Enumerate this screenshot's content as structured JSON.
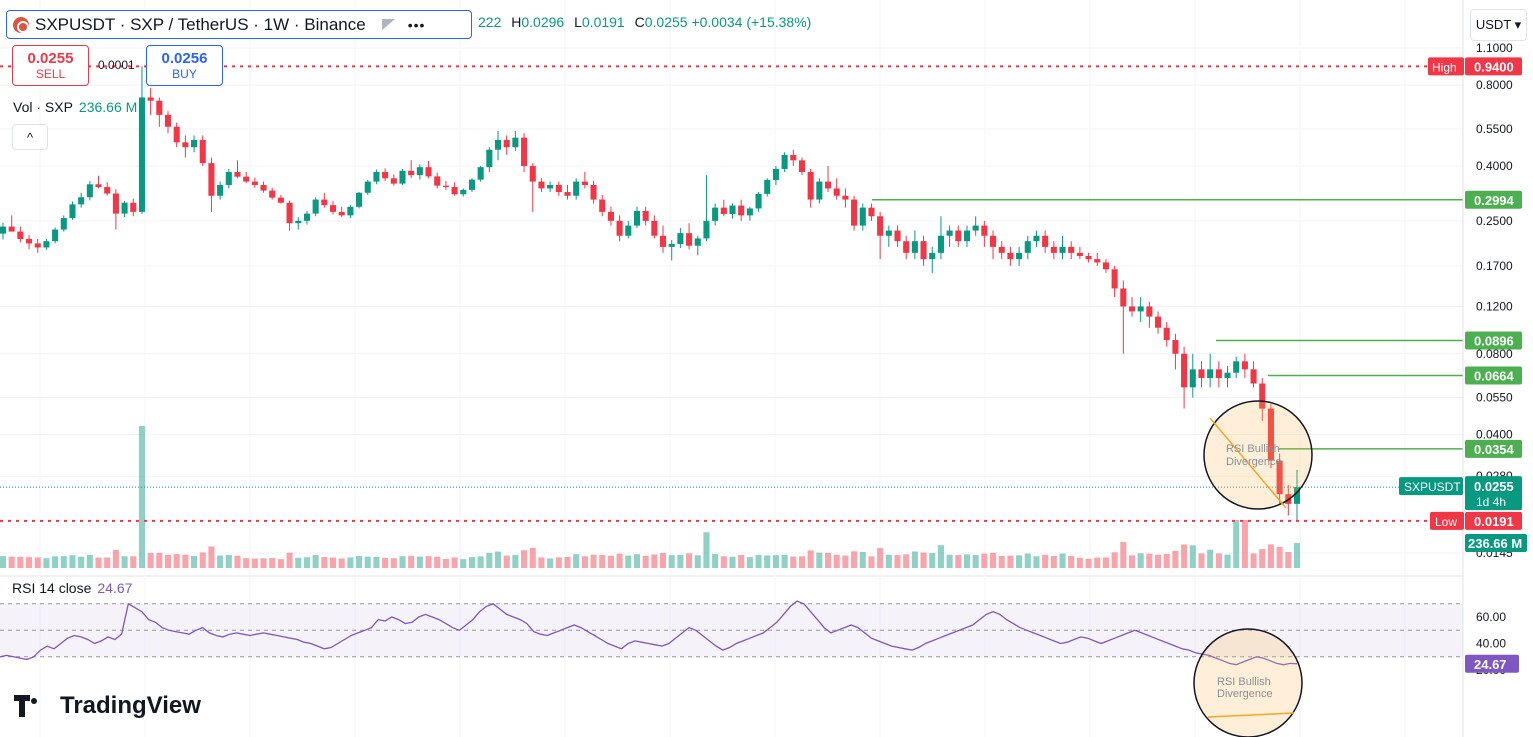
{
  "header": {
    "title": "SXPUSDT · SXP / TetherUS · 1W · Binance",
    "more": "•••",
    "ohlc": {
      "o_label": "222",
      "h_label": "H",
      "h": "0.0296",
      "l_label": "L",
      "l": "0.0191",
      "c_label": "C",
      "c": "0.0255",
      "change": "+0.0034 (+15.38%)"
    }
  },
  "trade": {
    "sell_price": "0.0255",
    "sell_label": "SELL",
    "spread": "0.0001",
    "buy_price": "0.0256",
    "buy_label": "BUY"
  },
  "volume_legend": {
    "label": "Vol · SXP",
    "value": "236.66 M"
  },
  "currency": "USDT ▾",
  "collapse_icon": "^",
  "rsi_legend": {
    "label": "RSI 14 close",
    "value": "24.67"
  },
  "brand": "TradingView",
  "colors": {
    "up": "#089981",
    "down": "#f23645",
    "rsi": "#7e57c2",
    "level": "#4caf50",
    "accent": "#2962ff"
  },
  "chart_data": {
    "type": "candlestick",
    "timeframe": "1W",
    "price_axis": {
      "scale": "log",
      "ticks": [
        "1.1000",
        "0.8000",
        "0.5500",
        "0.4000",
        "0.2500",
        "0.1700",
        "0.1200",
        "0.0800",
        "0.0550",
        "0.0400",
        "0.0280",
        "0.0145"
      ]
    },
    "high_marker": {
      "label": "High",
      "value": "0.9400"
    },
    "low_marker": {
      "label": "Low",
      "value": "0.0191"
    },
    "current": {
      "symbol": "SXPUSDT",
      "value": "0.0255",
      "countdown": "1d 4h"
    },
    "volume_marker": "236.66 M",
    "levels": [
      {
        "value": "0.2994"
      },
      {
        "value": "0.0896"
      },
      {
        "value": "0.0664"
      },
      {
        "value": "0.0354"
      }
    ],
    "annotations": [
      "RSI Bullish Divergence",
      "RSI Bullish Divergence"
    ],
    "rsi": {
      "period": 14,
      "axis_ticks": [
        "60.00",
        "40.00",
        "20.00"
      ],
      "current": "24.67",
      "values": [
        30,
        31,
        30,
        29,
        28,
        30,
        35,
        38,
        36,
        40,
        44,
        46,
        45,
        43,
        40,
        42,
        45,
        43,
        47,
        70,
        67,
        64,
        58,
        56,
        52,
        50,
        49,
        48,
        47,
        50,
        52,
        48,
        46,
        45,
        47,
        48,
        47,
        46,
        47,
        48,
        47,
        46,
        45,
        44,
        43,
        41,
        40,
        38,
        36,
        37,
        40,
        43,
        46,
        48,
        50,
        52,
        58,
        57,
        60,
        58,
        55,
        56,
        60,
        62,
        60,
        58,
        55,
        52,
        50,
        54,
        58,
        64,
        68,
        70,
        66,
        62,
        60,
        58,
        55,
        49,
        47,
        46,
        48,
        50,
        52,
        54,
        52,
        49,
        46,
        43,
        40,
        38,
        36,
        40,
        42,
        41,
        40,
        39,
        38,
        40,
        44,
        48,
        52,
        50,
        46,
        42,
        38,
        35,
        37,
        40,
        42,
        44,
        46,
        48,
        52,
        56,
        62,
        68,
        72,
        70,
        64,
        58,
        52,
        48,
        50,
        52,
        54,
        52,
        48,
        44,
        42,
        40,
        38,
        37,
        36,
        35,
        37,
        40,
        42,
        44,
        46,
        48,
        50,
        52,
        54,
        58,
        62,
        64,
        62,
        58,
        55,
        52,
        50,
        48,
        46,
        44,
        42,
        40,
        41,
        43,
        45,
        44,
        42,
        40,
        42,
        44,
        46,
        48,
        50,
        48,
        46,
        44,
        42,
        40,
        38,
        36,
        35,
        33,
        32,
        31,
        29,
        27,
        25,
        24,
        26,
        28,
        30,
        29,
        27,
        25,
        24,
        25,
        24.67
      ]
    },
    "candles": [
      [
        0.224,
        0.246,
        0.213,
        0.238
      ],
      [
        0.238,
        0.262,
        0.23,
        0.228
      ],
      [
        0.228,
        0.238,
        0.208,
        0.214
      ],
      [
        0.214,
        0.222,
        0.196,
        0.206
      ],
      [
        0.206,
        0.214,
        0.19,
        0.199
      ],
      [
        0.199,
        0.214,
        0.195,
        0.21
      ],
      [
        0.21,
        0.236,
        0.206,
        0.232
      ],
      [
        0.232,
        0.262,
        0.228,
        0.256
      ],
      [
        0.256,
        0.295,
        0.252,
        0.288
      ],
      [
        0.288,
        0.318,
        0.28,
        0.306
      ],
      [
        0.306,
        0.352,
        0.298,
        0.342
      ],
      [
        0.342,
        0.368,
        0.33,
        0.334
      ],
      [
        0.334,
        0.348,
        0.31,
        0.316
      ],
      [
        0.316,
        0.328,
        0.232,
        0.266
      ],
      [
        0.266,
        0.296,
        0.258,
        0.292
      ],
      [
        0.292,
        0.302,
        0.26,
        0.27
      ],
      [
        0.27,
        0.94,
        0.265,
        0.72
      ],
      [
        0.72,
        0.78,
        0.62,
        0.7
      ],
      [
        0.7,
        0.72,
        0.56,
        0.62
      ],
      [
        0.62,
        0.64,
        0.53,
        0.56
      ],
      [
        0.56,
        0.58,
        0.47,
        0.49
      ],
      [
        0.49,
        0.52,
        0.43,
        0.47
      ],
      [
        0.47,
        0.52,
        0.45,
        0.5
      ],
      [
        0.5,
        0.52,
        0.4,
        0.41
      ],
      [
        0.41,
        0.43,
        0.27,
        0.31
      ],
      [
        0.31,
        0.35,
        0.3,
        0.34
      ],
      [
        0.34,
        0.39,
        0.33,
        0.38
      ],
      [
        0.38,
        0.42,
        0.36,
        0.365
      ],
      [
        0.365,
        0.38,
        0.345,
        0.35
      ],
      [
        0.35,
        0.362,
        0.332,
        0.34
      ],
      [
        0.34,
        0.35,
        0.318,
        0.324
      ],
      [
        0.324,
        0.332,
        0.3,
        0.305
      ],
      [
        0.305,
        0.312,
        0.29,
        0.292
      ],
      [
        0.292,
        0.298,
        0.23,
        0.245
      ],
      [
        0.245,
        0.258,
        0.232,
        0.25
      ],
      [
        0.25,
        0.272,
        0.242,
        0.266
      ],
      [
        0.266,
        0.306,
        0.26,
        0.3
      ],
      [
        0.3,
        0.318,
        0.28,
        0.286
      ],
      [
        0.286,
        0.296,
        0.264,
        0.27
      ],
      [
        0.27,
        0.282,
        0.258,
        0.262
      ],
      [
        0.262,
        0.286,
        0.256,
        0.282
      ],
      [
        0.282,
        0.32,
        0.278,
        0.318
      ],
      [
        0.318,
        0.355,
        0.312,
        0.35
      ],
      [
        0.35,
        0.388,
        0.342,
        0.38
      ],
      [
        0.38,
        0.392,
        0.352,
        0.36
      ],
      [
        0.36,
        0.372,
        0.338,
        0.344
      ],
      [
        0.344,
        0.39,
        0.34,
        0.384
      ],
      [
        0.384,
        0.42,
        0.36,
        0.37
      ],
      [
        0.37,
        0.406,
        0.356,
        0.396
      ],
      [
        0.396,
        0.418,
        0.36,
        0.366
      ],
      [
        0.366,
        0.378,
        0.33,
        0.338
      ],
      [
        0.338,
        0.352,
        0.326,
        0.334
      ],
      [
        0.334,
        0.348,
        0.31,
        0.314
      ],
      [
        0.314,
        0.33,
        0.308,
        0.326
      ],
      [
        0.326,
        0.36,
        0.32,
        0.356
      ],
      [
        0.356,
        0.4,
        0.35,
        0.396
      ],
      [
        0.396,
        0.47,
        0.38,
        0.46
      ],
      [
        0.46,
        0.54,
        0.42,
        0.5
      ],
      [
        0.5,
        0.52,
        0.44,
        0.47
      ],
      [
        0.47,
        0.54,
        0.456,
        0.51
      ],
      [
        0.51,
        0.53,
        0.38,
        0.4
      ],
      [
        0.4,
        0.41,
        0.27,
        0.35
      ],
      [
        0.35,
        0.36,
        0.32,
        0.33
      ],
      [
        0.33,
        0.35,
        0.32,
        0.34
      ],
      [
        0.34,
        0.35,
        0.31,
        0.32
      ],
      [
        0.32,
        0.34,
        0.3,
        0.31
      ],
      [
        0.31,
        0.36,
        0.3,
        0.35
      ],
      [
        0.35,
        0.38,
        0.33,
        0.34
      ],
      [
        0.34,
        0.352,
        0.29,
        0.3
      ],
      [
        0.3,
        0.312,
        0.26,
        0.27
      ],
      [
        0.27,
        0.282,
        0.24,
        0.25
      ],
      [
        0.25,
        0.262,
        0.21,
        0.22
      ],
      [
        0.22,
        0.25,
        0.215,
        0.24
      ],
      [
        0.24,
        0.282,
        0.235,
        0.272
      ],
      [
        0.272,
        0.282,
        0.24,
        0.25
      ],
      [
        0.25,
        0.262,
        0.215,
        0.22
      ],
      [
        0.22,
        0.24,
        0.19,
        0.2
      ],
      [
        0.2,
        0.212,
        0.178,
        0.205
      ],
      [
        0.205,
        0.235,
        0.198,
        0.225
      ],
      [
        0.225,
        0.245,
        0.196,
        0.202
      ],
      [
        0.202,
        0.22,
        0.186,
        0.215
      ],
      [
        0.215,
        0.37,
        0.21,
        0.25
      ],
      [
        0.25,
        0.29,
        0.24,
        0.28
      ],
      [
        0.28,
        0.3,
        0.26,
        0.265
      ],
      [
        0.265,
        0.29,
        0.255,
        0.285
      ],
      [
        0.285,
        0.3,
        0.25,
        0.262
      ],
      [
        0.262,
        0.282,
        0.25,
        0.278
      ],
      [
        0.278,
        0.32,
        0.27,
        0.315
      ],
      [
        0.315,
        0.36,
        0.308,
        0.355
      ],
      [
        0.355,
        0.4,
        0.34,
        0.39
      ],
      [
        0.39,
        0.45,
        0.38,
        0.44
      ],
      [
        0.44,
        0.46,
        0.4,
        0.42
      ],
      [
        0.42,
        0.43,
        0.37,
        0.38
      ],
      [
        0.38,
        0.39,
        0.28,
        0.3
      ],
      [
        0.3,
        0.36,
        0.29,
        0.35
      ],
      [
        0.35,
        0.4,
        0.32,
        0.33
      ],
      [
        0.33,
        0.36,
        0.3,
        0.31
      ],
      [
        0.31,
        0.33,
        0.28,
        0.3
      ],
      [
        0.3,
        0.31,
        0.23,
        0.24
      ],
      [
        0.24,
        0.29,
        0.23,
        0.28
      ],
      [
        0.28,
        0.29,
        0.25,
        0.26
      ],
      [
        0.26,
        0.27,
        0.18,
        0.22
      ],
      [
        0.22,
        0.24,
        0.2,
        0.23
      ],
      [
        0.23,
        0.24,
        0.2,
        0.21
      ],
      [
        0.21,
        0.22,
        0.18,
        0.19
      ],
      [
        0.19,
        0.23,
        0.18,
        0.21
      ],
      [
        0.21,
        0.22,
        0.17,
        0.18
      ],
      [
        0.18,
        0.2,
        0.16,
        0.19
      ],
      [
        0.19,
        0.26,
        0.18,
        0.22
      ],
      [
        0.22,
        0.24,
        0.2,
        0.23
      ],
      [
        0.23,
        0.24,
        0.2,
        0.21
      ],
      [
        0.21,
        0.24,
        0.2,
        0.23
      ],
      [
        0.23,
        0.26,
        0.22,
        0.24
      ],
      [
        0.24,
        0.25,
        0.2,
        0.22
      ],
      [
        0.22,
        0.23,
        0.18,
        0.2
      ],
      [
        0.2,
        0.21,
        0.18,
        0.19
      ],
      [
        0.19,
        0.2,
        0.17,
        0.18
      ],
      [
        0.18,
        0.2,
        0.17,
        0.19
      ],
      [
        0.19,
        0.22,
        0.18,
        0.21
      ],
      [
        0.21,
        0.23,
        0.2,
        0.22
      ],
      [
        0.22,
        0.23,
        0.19,
        0.2
      ],
      [
        0.2,
        0.21,
        0.18,
        0.19
      ],
      [
        0.19,
        0.22,
        0.18,
        0.2
      ],
      [
        0.2,
        0.21,
        0.18,
        0.19
      ],
      [
        0.19,
        0.2,
        0.18,
        0.185
      ],
      [
        0.185,
        0.19,
        0.175,
        0.18
      ],
      [
        0.18,
        0.19,
        0.17,
        0.175
      ],
      [
        0.175,
        0.18,
        0.16,
        0.165
      ],
      [
        0.165,
        0.17,
        0.13,
        0.14
      ],
      [
        0.14,
        0.15,
        0.08,
        0.12
      ],
      [
        0.12,
        0.13,
        0.11,
        0.115
      ],
      [
        0.115,
        0.13,
        0.105,
        0.12
      ],
      [
        0.12,
        0.125,
        0.1,
        0.11
      ],
      [
        0.11,
        0.115,
        0.095,
        0.1
      ],
      [
        0.1,
        0.105,
        0.085,
        0.09
      ],
      [
        0.09,
        0.095,
        0.07,
        0.08
      ],
      [
        0.08,
        0.085,
        0.05,
        0.06
      ],
      [
        0.06,
        0.08,
        0.055,
        0.07
      ],
      [
        0.07,
        0.075,
        0.06,
        0.065
      ],
      [
        0.065,
        0.08,
        0.06,
        0.07
      ],
      [
        0.07,
        0.075,
        0.06,
        0.065
      ],
      [
        0.065,
        0.072,
        0.06,
        0.068
      ],
      [
        0.068,
        0.078,
        0.065,
        0.075
      ],
      [
        0.075,
        0.08,
        0.065,
        0.07
      ],
      [
        0.07,
        0.075,
        0.06,
        0.062
      ],
      [
        0.062,
        0.065,
        0.045,
        0.05
      ],
      [
        0.05,
        0.052,
        0.03,
        0.032
      ],
      [
        0.032,
        0.034,
        0.022,
        0.024
      ],
      [
        0.024,
        0.026,
        0.02,
        0.0221
      ],
      [
        0.0221,
        0.0296,
        0.0191,
        0.0255
      ]
    ]
  }
}
